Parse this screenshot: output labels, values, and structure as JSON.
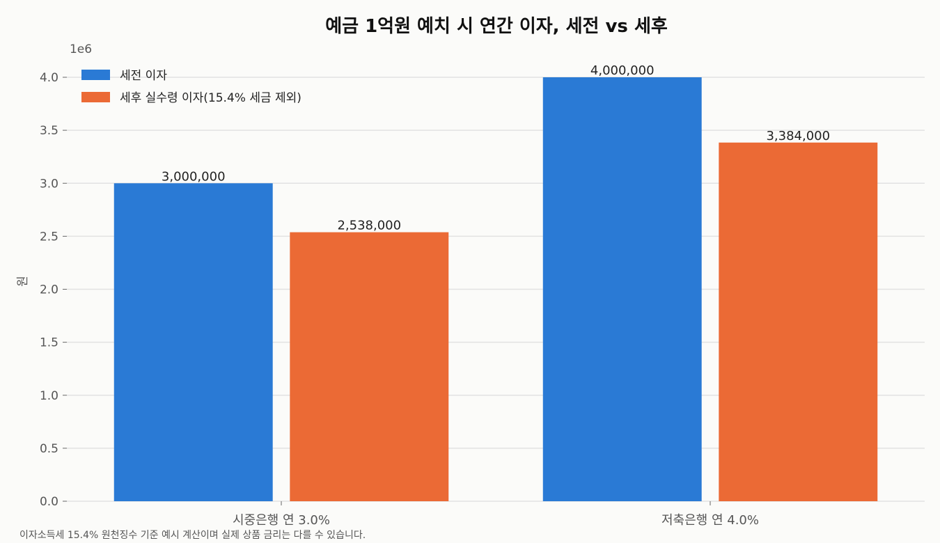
{
  "chart_data": {
    "type": "bar",
    "title": "예금 1억원 예치 시 연간 이자, 세전 vs 세후",
    "xlabel": "",
    "ylabel": "원",
    "y_offset_label": "1e6",
    "ylim": [
      0,
      4000000
    ],
    "y_ticks": [
      {
        "value": 0,
        "label": "0.0"
      },
      {
        "value": 500000,
        "label": "0.5"
      },
      {
        "value": 1000000,
        "label": "1.0"
      },
      {
        "value": 1500000,
        "label": "1.5"
      },
      {
        "value": 2000000,
        "label": "2.0"
      },
      {
        "value": 2500000,
        "label": "2.5"
      },
      {
        "value": 3000000,
        "label": "3.0"
      },
      {
        "value": 3500000,
        "label": "3.5"
      },
      {
        "value": 4000000,
        "label": "4.0"
      }
    ],
    "categories": [
      "시중은행 연 3.0%",
      "저축은행 연 4.0%"
    ],
    "series": [
      {
        "name": "세전 이자",
        "color": "#2a7ad5",
        "values": [
          3000000,
          4000000
        ],
        "labels": [
          "3,000,000",
          "4,000,000"
        ]
      },
      {
        "name": "세후 실수령 이자(15.4% 세금 제외)",
        "color": "#eb6a35",
        "values": [
          2538000,
          3384000
        ],
        "labels": [
          "2,538,000",
          "3,384,000"
        ]
      }
    ],
    "grid": "horizontal",
    "legend_position": "top-left",
    "footnote": "이자소득세 15.4% 원천징수 기준 예시 계산이며 실제 상품 금리는 다를 수 있습니다."
  }
}
